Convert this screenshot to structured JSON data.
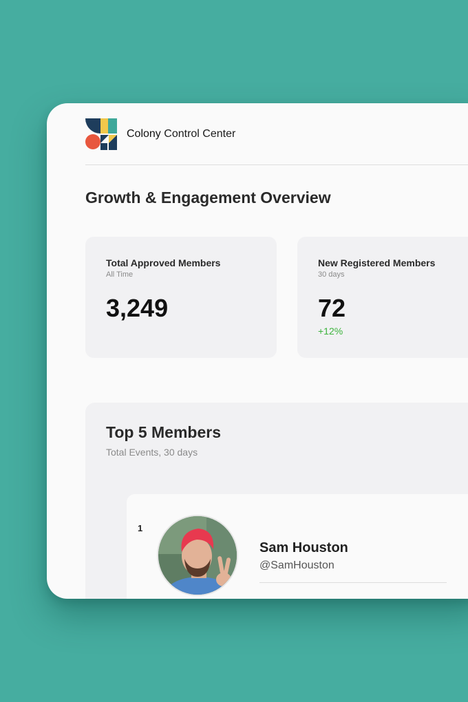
{
  "app": {
    "title_brand": "Colony",
    "title_rest": "Control Center",
    "logo_icon": "colony-logo-icon"
  },
  "page": {
    "title": "Growth & Engagement Overview"
  },
  "stats": [
    {
      "label": "Total Approved Members",
      "sub": "All Time",
      "value": "3,249",
      "change": ""
    },
    {
      "label": "New Registered Members",
      "sub": "30 days",
      "value": "72",
      "change": "+12%"
    }
  ],
  "top_members": {
    "title": "Top 5 Members",
    "subtitle": "Total Events, 30 days",
    "items": [
      {
        "rank": "1",
        "name": "Sam Houston",
        "handle": "@SamHouston",
        "avatar_icon": "avatar-photo"
      }
    ]
  },
  "colors": {
    "background": "#46ada0",
    "window": "#fafafa",
    "card": "#f1f1f3",
    "positive": "#3bb33b",
    "logo_navy": "#1e3d5c",
    "logo_yellow": "#f1c84b",
    "logo_teal": "#3fa89a",
    "logo_red": "#e8573e"
  }
}
